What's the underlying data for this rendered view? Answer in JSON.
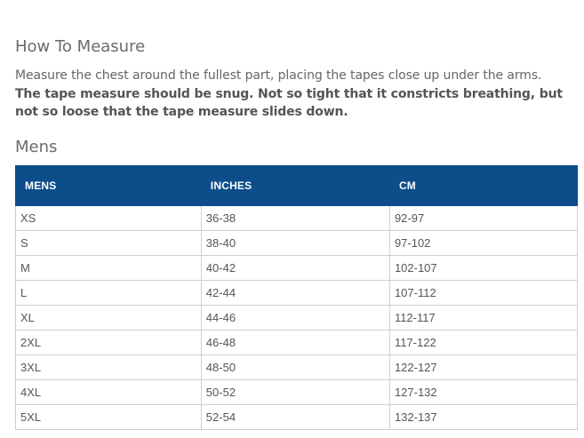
{
  "measure": {
    "title": "How To Measure",
    "instruction": "Measure the chest around the fullest part, placing the tapes close up under the arms.",
    "emphasis": "The tape measure should be snug. Not so tight that it constricts breathing, but not so loose that the tape measure slides down."
  },
  "mens": {
    "title": "Mens",
    "headers": [
      "MENS",
      "INCHES",
      "CM"
    ],
    "rows": [
      [
        "XS",
        "36-38",
        "92-97"
      ],
      [
        "S",
        "38-40",
        "97-102"
      ],
      [
        "M",
        "40-42",
        "102-107"
      ],
      [
        "L",
        "42-44",
        "107-112"
      ],
      [
        "XL",
        "44-46",
        "112-117"
      ],
      [
        "2XL",
        "46-48",
        "117-122"
      ],
      [
        "3XL",
        "48-50",
        "122-127"
      ],
      [
        "4XL",
        "50-52",
        "127-132"
      ],
      [
        "5XL",
        "52-54",
        "132-137"
      ]
    ]
  },
  "colors": {
    "header_bg": "#0c4d8a",
    "header_text": "#ffffff",
    "border": "#cfcfcf"
  }
}
